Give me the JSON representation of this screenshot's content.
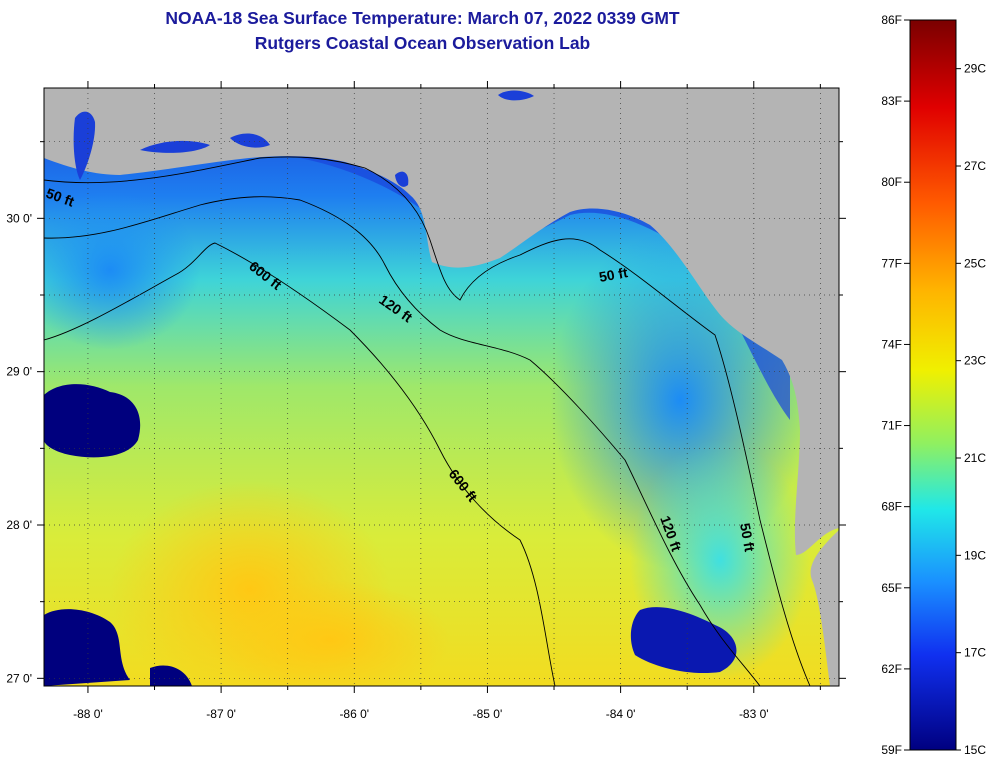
{
  "title": {
    "line1": "NOAA-18 Sea Surface Temperature:  March 07, 2022 0339 GMT",
    "line2": "Rutgers Coastal Ocean Observation Lab"
  },
  "map": {
    "lon_range": [
      -88.33,
      -82.36
    ],
    "lat_range": [
      26.95,
      30.85
    ],
    "lon_ticks": [
      -88,
      -87,
      -86,
      -85,
      -84,
      -83
    ],
    "lon_labels": [
      "-88 0'",
      "-87 0'",
      "-86 0'",
      "-85 0'",
      "-84 0'",
      "-83 0'"
    ],
    "lat_ticks": [
      30,
      29,
      28,
      27
    ],
    "lat_labels": [
      "30 0'",
      "29 0'",
      "28 0'",
      "27 0'"
    ],
    "contour_labels": [
      "50 ft",
      "600 ft",
      "120 ft",
      "50 ft",
      "600 ft",
      "120 ft",
      "50 ft"
    ],
    "land_color": "#b4b4b4",
    "cloud_color": "#00007e"
  },
  "colorbar": {
    "f_labels": [
      "86F",
      "83F",
      "80F",
      "77F",
      "74F",
      "71F",
      "68F",
      "65F",
      "62F",
      "59F"
    ],
    "f_values": [
      86,
      83,
      80,
      77,
      74,
      71,
      68,
      65,
      62,
      59
    ],
    "c_labels": [
      "29C",
      "27C",
      "25C",
      "23C",
      "21C",
      "19C",
      "17C",
      "15C"
    ],
    "c_values": [
      29,
      27,
      25,
      23,
      21,
      19,
      17,
      15
    ],
    "range_f": [
      59,
      86
    ]
  }
}
